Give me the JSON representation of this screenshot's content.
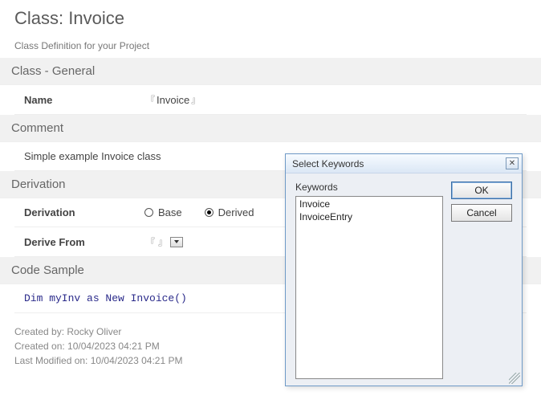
{
  "page": {
    "title": "Class: Invoice",
    "subtitle": "Class Definition for your Project"
  },
  "sections": {
    "general": {
      "header": "Class - General",
      "name_label": "Name",
      "name_value": "Invoice"
    },
    "comment": {
      "header": "Comment",
      "value": "Simple example Invoice class"
    },
    "derivation": {
      "header": "Derivation",
      "derivation_label": "Derivation",
      "base_label": "Base",
      "derived_label": "Derived",
      "selected": "Derived",
      "derive_from_label": "Derive From",
      "derive_from_value": ""
    },
    "code": {
      "header": "Code Sample",
      "value": "Dim myInv as New Invoice()"
    }
  },
  "footer": {
    "created_by": "Created by: Rocky Oliver",
    "created_on": "Created on: 10/04/2023 04:21 PM",
    "modified_on": "Last Modified on: 10/04/2023 04:21 PM"
  },
  "dialog": {
    "title": "Select Keywords",
    "label": "Keywords",
    "items": [
      "Invoice",
      "InvoiceEntry"
    ],
    "ok": "OK",
    "cancel": "Cancel"
  }
}
